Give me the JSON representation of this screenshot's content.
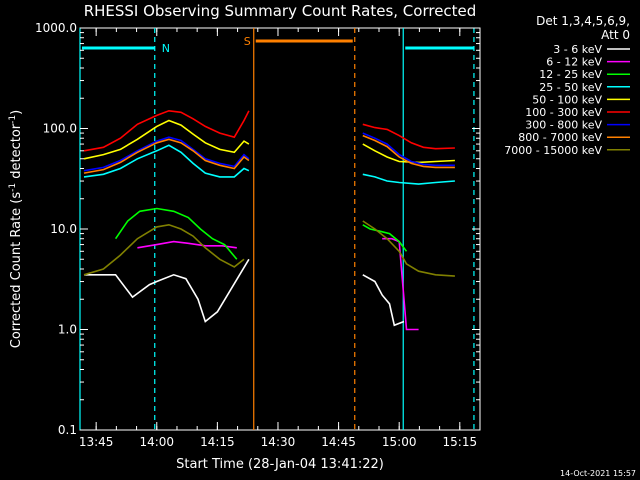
{
  "chart_data": {
    "type": "line",
    "title": "RHESSI Observing Summary Count Rates, Corrected",
    "xlabel": "Start Time (28-Jan-04 13:41:22)",
    "ylabel_parts": {
      "pre": "Corrected Count Rate (s",
      "sup1": "-1",
      "mid": " detector",
      "sup2": "-1",
      "post": ")"
    },
    "y_scale": "log",
    "ylim": [
      0.1,
      1000.0
    ],
    "y_ticks": [
      "0.1",
      "1.0",
      "10.0",
      "100.0",
      "1000.0"
    ],
    "x_range_minutes": [
      "13:41:22",
      "15:20:30"
    ],
    "x_ticks": [
      "13:45",
      "14:00",
      "14:15",
      "14:30",
      "14:45",
      "15:00",
      "15:15"
    ],
    "legend_header": [
      "Det 1,3,4,5,6,9,",
      "Att 0"
    ],
    "legend_placement": "right",
    "timestamp": "14-Oct-2021 15:57",
    "flags": [
      {
        "label": "N",
        "color": "#00ffff",
        "start": "13:41",
        "end": "14:00"
      },
      {
        "label": "S",
        "color": "#ff8000",
        "start": "14:24",
        "end": "14:49"
      },
      {
        "label": "",
        "color": "#00ffff",
        "start": "15:01",
        "end": "15:19"
      }
    ],
    "vertical_markers": [
      {
        "time": "13:41",
        "color": "#00ffff",
        "style": "solid"
      },
      {
        "time": "13:59.5",
        "color": "#00ffff",
        "style": "dashed"
      },
      {
        "time": "14:24",
        "color": "#ff8000",
        "style": "solid"
      },
      {
        "time": "14:49",
        "color": "#ff8000",
        "style": "dashed"
      },
      {
        "time": "15:01",
        "color": "#00ffff",
        "style": "solid"
      },
      {
        "time": "15:18.5",
        "color": "#00ffff",
        "style": "dashed"
      }
    ],
    "series": [
      {
        "name": "3 - 6 keV",
        "color": "#ffffff",
        "seg1": [
          [
            13.7,
            3.5
          ],
          [
            13.83,
            3.5
          ],
          [
            13.9,
            2.1
          ],
          [
            13.97,
            2.8
          ],
          [
            14.0,
            3.0
          ],
          [
            14.07,
            3.5
          ],
          [
            14.12,
            3.2
          ],
          [
            14.17,
            2.0
          ],
          [
            14.2,
            1.2
          ],
          [
            14.25,
            1.5
          ],
          [
            14.38,
            5.0
          ]
        ],
        "seg2": [
          [
            14.85,
            3.5
          ],
          [
            14.9,
            3.0
          ],
          [
            14.93,
            2.2
          ],
          [
            14.96,
            1.8
          ],
          [
            14.98,
            1.1
          ],
          [
            15.02,
            1.2
          ]
        ]
      },
      {
        "name": "6 - 12 keV",
        "color": "#ff00ff",
        "seg1": [
          [
            13.92,
            6.5
          ],
          [
            14.0,
            7.0
          ],
          [
            14.07,
            7.5
          ],
          [
            14.13,
            7.2
          ],
          [
            14.2,
            6.8
          ],
          [
            14.27,
            6.8
          ],
          [
            14.33,
            6.5
          ]
        ],
        "seg2": [
          [
            14.93,
            8.0
          ],
          [
            14.97,
            8.0
          ],
          [
            15.0,
            7.5
          ],
          [
            15.03,
            1.0
          ],
          [
            15.08,
            1.0
          ]
        ]
      },
      {
        "name": "12 - 25 keV",
        "color": "#00ff00",
        "seg1": [
          [
            13.83,
            8.0
          ],
          [
            13.88,
            12.0
          ],
          [
            13.93,
            15.0
          ],
          [
            14.0,
            16.0
          ],
          [
            14.07,
            15.0
          ],
          [
            14.13,
            13.0
          ],
          [
            14.18,
            10.0
          ],
          [
            14.23,
            8.0
          ],
          [
            14.28,
            7.0
          ],
          [
            14.33,
            5.0
          ]
        ],
        "seg2": [
          [
            14.85,
            11.0
          ],
          [
            14.88,
            10.0
          ],
          [
            14.92,
            9.5
          ],
          [
            14.96,
            9.0
          ],
          [
            15.0,
            7.5
          ],
          [
            15.03,
            6.0
          ]
        ]
      },
      {
        "name": "25 - 50 keV",
        "color": "#00ffff",
        "seg1": [
          [
            13.7,
            33.0
          ],
          [
            13.78,
            35.0
          ],
          [
            13.85,
            40.0
          ],
          [
            13.92,
            50.0
          ],
          [
            14.0,
            60.0
          ],
          [
            14.05,
            68.0
          ],
          [
            14.1,
            58.0
          ],
          [
            14.15,
            45.0
          ],
          [
            14.2,
            36.0
          ],
          [
            14.26,
            33.0
          ],
          [
            14.32,
            33.0
          ],
          [
            14.36,
            40.0
          ],
          [
            14.38,
            38.0
          ]
        ],
        "seg2": [
          [
            14.85,
            35.0
          ],
          [
            14.9,
            33.0
          ],
          [
            14.95,
            30.0
          ],
          [
            15.0,
            29.0
          ],
          [
            15.08,
            28.0
          ],
          [
            15.15,
            29.0
          ],
          [
            15.23,
            30.0
          ]
        ]
      },
      {
        "name": "50 - 100 keV",
        "color": "#ffff00",
        "seg1": [
          [
            13.7,
            50.0
          ],
          [
            13.78,
            55.0
          ],
          [
            13.85,
            62.0
          ],
          [
            13.92,
            78.0
          ],
          [
            14.0,
            105.0
          ],
          [
            14.05,
            120.0
          ],
          [
            14.1,
            108.0
          ],
          [
            14.15,
            88.0
          ],
          [
            14.2,
            72.0
          ],
          [
            14.26,
            62.0
          ],
          [
            14.32,
            58.0
          ],
          [
            14.36,
            75.0
          ],
          [
            14.38,
            70.0
          ]
        ],
        "seg2": [
          [
            14.85,
            70.0
          ],
          [
            14.9,
            60.0
          ],
          [
            14.95,
            52.0
          ],
          [
            15.0,
            47.0
          ],
          [
            15.08,
            46.0
          ],
          [
            15.15,
            47.0
          ],
          [
            15.23,
            48.0
          ]
        ]
      },
      {
        "name": "100 - 300 keV",
        "color": "#ff0000",
        "seg1": [
          [
            13.7,
            60.0
          ],
          [
            13.78,
            65.0
          ],
          [
            13.85,
            80.0
          ],
          [
            13.92,
            110.0
          ],
          [
            14.0,
            135.0
          ],
          [
            14.05,
            150.0
          ],
          [
            14.1,
            145.0
          ],
          [
            14.15,
            125.0
          ],
          [
            14.2,
            105.0
          ],
          [
            14.26,
            90.0
          ],
          [
            14.32,
            82.0
          ],
          [
            14.36,
            120.0
          ],
          [
            14.38,
            150.0
          ]
        ],
        "seg2": [
          [
            14.85,
            110.0
          ],
          [
            14.9,
            102.0
          ],
          [
            14.95,
            98.0
          ],
          [
            15.0,
            85.0
          ],
          [
            15.05,
            72.0
          ],
          [
            15.1,
            65.0
          ],
          [
            15.15,
            63.0
          ],
          [
            15.23,
            64.0
          ]
        ]
      },
      {
        "name": "300 - 800 keV",
        "color": "#0000ff",
        "seg1": [
          [
            13.7,
            38.0
          ],
          [
            13.78,
            41.0
          ],
          [
            13.85,
            48.0
          ],
          [
            13.92,
            60.0
          ],
          [
            14.0,
            75.0
          ],
          [
            14.05,
            82.0
          ],
          [
            14.1,
            76.0
          ],
          [
            14.15,
            62.0
          ],
          [
            14.2,
            50.0
          ],
          [
            14.26,
            45.0
          ],
          [
            14.32,
            42.0
          ],
          [
            14.36,
            55.0
          ],
          [
            14.38,
            50.0
          ]
        ],
        "seg2": [
          [
            14.85,
            90.0
          ],
          [
            14.9,
            80.0
          ],
          [
            14.95,
            70.0
          ],
          [
            15.0,
            55.0
          ],
          [
            15.05,
            47.0
          ],
          [
            15.1,
            44.0
          ],
          [
            15.15,
            43.0
          ],
          [
            15.23,
            43.0
          ]
        ]
      },
      {
        "name": "800 - 7000 keV",
        "color": "#ff8000",
        "seg1": [
          [
            13.7,
            36.0
          ],
          [
            13.78,
            39.0
          ],
          [
            13.85,
            46.0
          ],
          [
            13.92,
            58.0
          ],
          [
            14.0,
            72.0
          ],
          [
            14.05,
            78.0
          ],
          [
            14.1,
            72.0
          ],
          [
            14.15,
            60.0
          ],
          [
            14.2,
            48.0
          ],
          [
            14.26,
            43.0
          ],
          [
            14.32,
            40.0
          ],
          [
            14.36,
            52.0
          ],
          [
            14.38,
            48.0
          ]
        ],
        "seg2": [
          [
            14.85,
            85.0
          ],
          [
            14.9,
            76.0
          ],
          [
            14.95,
            66.0
          ],
          [
            15.0,
            52.0
          ],
          [
            15.05,
            45.0
          ],
          [
            15.1,
            42.0
          ],
          [
            15.15,
            41.0
          ],
          [
            15.23,
            41.0
          ]
        ]
      },
      {
        "name": "7000 - 15000 keV",
        "color": "#808000",
        "seg1": [
          [
            13.7,
            3.5
          ],
          [
            13.78,
            4.0
          ],
          [
            13.85,
            5.5
          ],
          [
            13.92,
            8.0
          ],
          [
            14.0,
            10.5
          ],
          [
            14.05,
            11.0
          ],
          [
            14.1,
            10.0
          ],
          [
            14.15,
            8.5
          ],
          [
            14.2,
            6.5
          ],
          [
            14.26,
            5.0
          ],
          [
            14.32,
            4.2
          ],
          [
            14.36,
            5.0
          ]
        ],
        "seg2": [
          [
            14.85,
            12.0
          ],
          [
            14.9,
            10.0
          ],
          [
            14.95,
            8.0
          ],
          [
            15.0,
            6.0
          ],
          [
            15.03,
            4.5
          ],
          [
            15.08,
            3.8
          ],
          [
            15.15,
            3.5
          ],
          [
            15.23,
            3.4
          ]
        ]
      }
    ]
  }
}
